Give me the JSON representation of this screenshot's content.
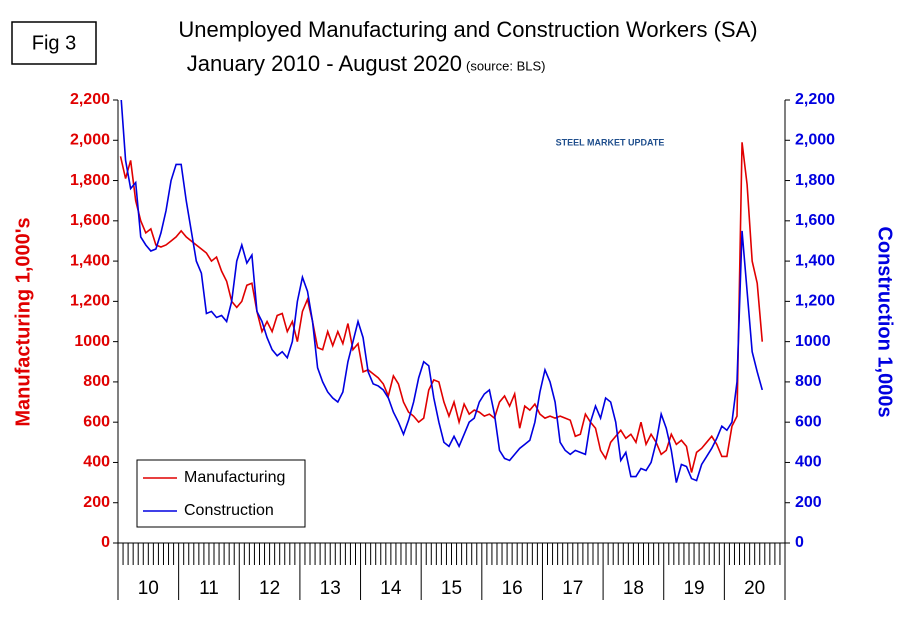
{
  "chart_data": {
    "type": "line",
    "figure_label": "Fig 3",
    "title": "Unemployed Manufacturing and Construction Workers (SA)",
    "subtitle": "January 2010 - August 2020",
    "source": "(source: BLS)",
    "logo": "STEEL MARKET UPDATE",
    "ylabel": "Manufacturing  1,000's",
    "y2label": "Construction 1,000s",
    "categories": [
      null,
      null,
      null,
      null,
      null,
      null,
      "10",
      null,
      null,
      null,
      null,
      null,
      null,
      null,
      null,
      null,
      null,
      null,
      "11",
      null,
      null,
      null,
      null,
      null,
      null,
      null,
      null,
      null,
      null,
      null,
      "12",
      null,
      null,
      null,
      null,
      null,
      null,
      null,
      null,
      null,
      null,
      null,
      "13",
      null,
      null,
      null,
      null,
      null,
      null,
      null,
      null,
      null,
      null,
      null,
      "14",
      null,
      null,
      null,
      null,
      null,
      null,
      null,
      null,
      null,
      null,
      null,
      "15",
      null,
      null,
      null,
      null,
      null,
      null,
      null,
      null,
      null,
      null,
      null,
      "16",
      null,
      null,
      null,
      null,
      null,
      null,
      null,
      null,
      null,
      null,
      null,
      "17",
      null,
      null,
      null,
      null,
      null,
      null,
      null,
      null,
      null,
      null,
      null,
      "18",
      null,
      null,
      null,
      null,
      null,
      null,
      null,
      null,
      null,
      null,
      null,
      "19",
      null,
      null,
      null,
      null,
      null,
      null,
      null,
      null,
      null,
      null,
      null,
      "20",
      null,
      null,
      null,
      null,
      null
    ],
    "series": [
      {
        "name": "Manufacturing",
        "color": "#e00000",
        "axis": "y",
        "values": [
          1920,
          1810,
          1900,
          1700,
          1600,
          1540,
          1560,
          1480,
          1470,
          1480,
          1500,
          1520,
          1550,
          1520,
          1500,
          1480,
          1460,
          1440,
          1400,
          1420,
          1350,
          1300,
          1200,
          1170,
          1200,
          1280,
          1290,
          1150,
          1050,
          1100,
          1050,
          1130,
          1140,
          1050,
          1100,
          1000,
          1150,
          1210,
          1100,
          970,
          960,
          1050,
          980,
          1050,
          990,
          1090,
          960,
          990,
          850,
          860,
          840,
          820,
          790,
          730,
          830,
          790,
          700,
          650,
          630,
          600,
          620,
          760,
          810,
          800,
          700,
          630,
          700,
          600,
          690,
          640,
          660,
          650,
          630,
          640,
          620,
          700,
          730,
          680,
          740,
          570,
          680,
          660,
          690,
          640,
          620,
          630,
          620,
          630,
          620,
          610,
          530,
          540,
          640,
          600,
          570,
          460,
          420,
          500,
          530,
          560,
          520,
          540,
          500,
          600,
          490,
          540,
          500,
          440,
          460,
          540,
          490,
          510,
          480,
          350,
          450,
          470,
          500,
          530,
          490,
          430,
          430,
          580,
          630,
          1990,
          1780,
          1400,
          1290,
          1000,
          null,
          null,
          null,
          null
        ]
      },
      {
        "name": "Construction",
        "color": "#0000e0",
        "axis": "y2",
        "values": [
          2250,
          1900,
          1760,
          1790,
          1520,
          1480,
          1450,
          1460,
          1540,
          1650,
          1800,
          1880,
          1880,
          1700,
          1550,
          1400,
          1340,
          1140,
          1150,
          1120,
          1130,
          1100,
          1200,
          1400,
          1480,
          1390,
          1430,
          1150,
          1100,
          1020,
          960,
          930,
          950,
          920,
          1000,
          1200,
          1320,
          1250,
          1100,
          870,
          800,
          750,
          720,
          700,
          750,
          900,
          1000,
          1100,
          1020,
          850,
          790,
          780,
          760,
          720,
          650,
          600,
          540,
          610,
          700,
          820,
          900,
          880,
          720,
          600,
          500,
          480,
          530,
          480,
          540,
          600,
          620,
          700,
          740,
          760,
          640,
          460,
          420,
          410,
          440,
          470,
          490,
          510,
          600,
          750,
          860,
          800,
          700,
          500,
          460,
          440,
          460,
          450,
          440,
          600,
          680,
          620,
          720,
          700,
          600,
          410,
          450,
          330,
          330,
          370,
          360,
          400,
          500,
          640,
          570,
          460,
          300,
          390,
          380,
          320,
          310,
          390,
          430,
          470,
          520,
          580,
          560,
          600,
          800,
          1550,
          1250,
          950,
          850,
          760,
          null,
          null,
          null,
          null
        ]
      }
    ],
    "ylim": [
      0,
      2200
    ],
    "yticks": [
      0,
      200,
      400,
      600,
      800,
      1000,
      {
        "value": 1200,
        "label": "1,200"
      },
      {
        "value": 1400,
        "label": "1,400"
      },
      {
        "value": 1600,
        "label": "1,600"
      },
      {
        "value": 1800,
        "label": "1,800"
      },
      {
        "value": 2000,
        "label": "2,000"
      },
      {
        "value": 2200,
        "label": "2,200"
      }
    ],
    "y2lim": [
      0,
      2200
    ],
    "y2ticks": [
      0,
      200,
      400,
      600,
      800,
      1000,
      {
        "value": 1200,
        "label": "1,200"
      },
      {
        "value": 1400,
        "label": "1,400"
      },
      {
        "value": 1600,
        "label": "1,600"
      },
      {
        "value": 1800,
        "label": "1,800"
      },
      {
        "value": 2000,
        "label": "2,000"
      },
      {
        "value": 2200,
        "label": "2,200"
      }
    ],
    "legend": "lower left"
  }
}
